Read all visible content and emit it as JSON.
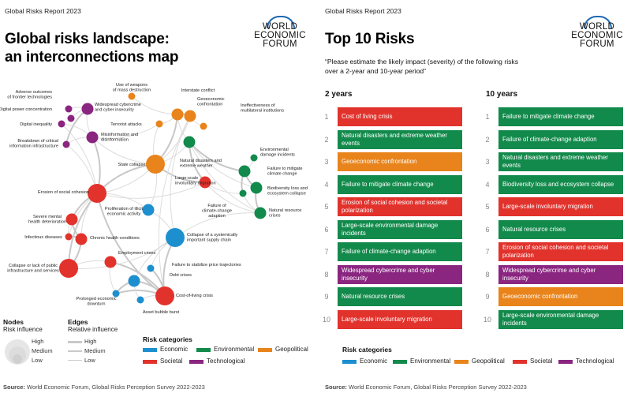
{
  "report_label": "Global Risks Report 2023",
  "logo": {
    "line1": "WORLD",
    "line2": "ECONOMIC",
    "line3": "FORUM"
  },
  "colors": {
    "economic": "#1d8fcf",
    "environmental": "#128a4b",
    "geopolitical": "#e8841b",
    "societal": "#e2322c",
    "technological": "#8a2580"
  },
  "left": {
    "title_line1": "Global risks landscape:",
    "title_line2": "an interconnections map",
    "nodes": [
      {
        "id": "adverse",
        "label": "Adverse outcomes of frontier technologies",
        "cat": "technological",
        "size": "low"
      },
      {
        "id": "digital_power",
        "label": "Digital power concentration",
        "cat": "technological",
        "size": "low"
      },
      {
        "id": "digital_ineq",
        "label": "Digital inequality",
        "cat": "technological",
        "size": "low"
      },
      {
        "id": "breakdown",
        "label": "Breakdown of critical information infrastructure",
        "cat": "technological",
        "size": "low"
      },
      {
        "id": "cyber",
        "label": "Widespread cybercrime and cyber insecurity",
        "cat": "technological",
        "size": "medium"
      },
      {
        "id": "misinfo",
        "label": "Misinformation and disinformation",
        "cat": "technological",
        "size": "medium"
      },
      {
        "id": "wmd",
        "label": "Use of weapons of mass destruction",
        "cat": "geopolitical",
        "size": "low"
      },
      {
        "id": "terror",
        "label": "Terrorist attacks",
        "cat": "geopolitical",
        "size": "low"
      },
      {
        "id": "interstate",
        "label": "Interstate conflict",
        "cat": "geopolitical",
        "size": "medium"
      },
      {
        "id": "geoeco",
        "label": "Geoeconomic confrontation",
        "cat": "geopolitical",
        "size": "medium"
      },
      {
        "id": "ineff",
        "label": "Ineffectiveness of multilateral institutions",
        "cat": "geopolitical",
        "size": "low"
      },
      {
        "id": "state",
        "label": "State collapse",
        "cat": "geopolitical",
        "size": "high"
      },
      {
        "id": "natdis",
        "label": "Natural disasters and extreme weather",
        "cat": "environmental",
        "size": "medium"
      },
      {
        "id": "envdam",
        "label": "Environmental damage incidents",
        "cat": "environmental",
        "size": "low"
      },
      {
        "id": "failmit",
        "label": "Failure to mitigate climate change",
        "cat": "environmental",
        "size": "medium"
      },
      {
        "id": "biodiv",
        "label": "Biodiversity loss and ecosystem collapse",
        "cat": "environmental",
        "size": "medium"
      },
      {
        "id": "natres",
        "label": "Natural resource crises",
        "cat": "environmental",
        "size": "medium"
      },
      {
        "id": "failadapt",
        "label": "Failure of climate-change adaption",
        "cat": "environmental",
        "size": "low"
      },
      {
        "id": "erosion",
        "label": "Erosion of social cohesion",
        "cat": "societal",
        "size": "high"
      },
      {
        "id": "migration",
        "label": "Large-scale involuntary migration",
        "cat": "societal",
        "size": "medium"
      },
      {
        "id": "mental",
        "label": "Severe mental health deterioration",
        "cat": "societal",
        "size": "medium"
      },
      {
        "id": "infect",
        "label": "Infectious diseases",
        "cat": "societal",
        "size": "low"
      },
      {
        "id": "chronic",
        "label": "Chronic health conditions",
        "cat": "societal",
        "size": "medium"
      },
      {
        "id": "collapse_infra",
        "label": "Collapse or lack of public infrastructure and services",
        "cat": "societal",
        "size": "high"
      },
      {
        "id": "employment",
        "label": "Employment crises",
        "cat": "societal",
        "size": "medium"
      },
      {
        "id": "col",
        "label": "Cost-of-living crisis",
        "cat": "societal",
        "size": "high"
      },
      {
        "id": "illicit",
        "label": "Proliferation of illicit economic activity",
        "cat": "economic",
        "size": "medium"
      },
      {
        "id": "supply",
        "label": "Collapse of a systemically important supply chain",
        "cat": "economic",
        "size": "high"
      },
      {
        "id": "price",
        "label": "Failure to stabilize price trajectories",
        "cat": "economic",
        "size": "low"
      },
      {
        "id": "debt",
        "label": "Debt crises",
        "cat": "economic",
        "size": "medium"
      },
      {
        "id": "downturn",
        "label": "Prolonged economic downturn",
        "cat": "economic",
        "size": "low"
      },
      {
        "id": "bubble",
        "label": "Asset bubble burst",
        "cat": "economic",
        "size": "low"
      }
    ],
    "legend": {
      "nodes_title": "Nodes",
      "nodes_sub": "Risk influence",
      "edges_title": "Edges",
      "edges_sub": "Relative influence",
      "levels": [
        "High",
        "Medium",
        "Low"
      ],
      "categories_title": "Risk categories",
      "categories": [
        {
          "key": "economic",
          "label": "Economic"
        },
        {
          "key": "environmental",
          "label": "Environmental"
        },
        {
          "key": "geopolitical",
          "label": "Geopolitical"
        },
        {
          "key": "societal",
          "label": "Societal"
        },
        {
          "key": "technological",
          "label": "Technological"
        }
      ]
    },
    "source_prefix": "Source:",
    "source_text": "World Economic Forum, Global Risks Perception Survey 2022-2023"
  },
  "right": {
    "title": "Top 10 Risks",
    "subtitle": "“Please estimate the likely impact (severity) of the following risks over a 2-year and 10-year period”",
    "col_2yr": "2 years",
    "col_10yr": "10 years",
    "two_year": [
      {
        "rank": "1",
        "label": "Cost of living crisis",
        "cat": "societal"
      },
      {
        "rank": "2",
        "label": "Natural disasters and extreme weather events",
        "cat": "environmental"
      },
      {
        "rank": "3",
        "label": "Geoeconomic confrontation",
        "cat": "geopolitical"
      },
      {
        "rank": "4",
        "label": "Failure to mitigate climate change",
        "cat": "environmental"
      },
      {
        "rank": "5",
        "label": "Erosion of social cohesion and societal polarization",
        "cat": "societal"
      },
      {
        "rank": "6",
        "label": "Large-scale environmental damage incidents",
        "cat": "environmental"
      },
      {
        "rank": "7",
        "label": "Failure of climate-change adaption",
        "cat": "environmental"
      },
      {
        "rank": "8",
        "label": "Widespread cybercrime and cyber insecurity",
        "cat": "technological"
      },
      {
        "rank": "9",
        "label": "Natural resource crises",
        "cat": "environmental"
      },
      {
        "rank": "10",
        "label": "Large-scale involuntary migration",
        "cat": "societal"
      }
    ],
    "ten_year": [
      {
        "rank": "1",
        "label": "Failure to mitigate climate change",
        "cat": "environmental"
      },
      {
        "rank": "2",
        "label": "Failure of climate-change adaption",
        "cat": "environmental"
      },
      {
        "rank": "3",
        "label": "Natural disasters and extreme weather events",
        "cat": "environmental"
      },
      {
        "rank": "4",
        "label": "Biodiversity loss and ecosystem collapse",
        "cat": "environmental"
      },
      {
        "rank": "5",
        "label": "Large-scale involuntary migration",
        "cat": "societal"
      },
      {
        "rank": "6",
        "label": "Natural resource crises",
        "cat": "environmental"
      },
      {
        "rank": "7",
        "label": "Erosion of social cohesion and societal polarization",
        "cat": "societal"
      },
      {
        "rank": "8",
        "label": "Widespread cybercrime and cyber insecurity",
        "cat": "technological"
      },
      {
        "rank": "9",
        "label": "Geoeconomic confrontation",
        "cat": "geopolitical"
      },
      {
        "rank": "10",
        "label": "Large-scale environmental damage incidents",
        "cat": "environmental"
      }
    ],
    "categories_title": "Risk categories",
    "categories": [
      {
        "key": "economic",
        "label": "Economic"
      },
      {
        "key": "environmental",
        "label": "Environmental"
      },
      {
        "key": "geopolitical",
        "label": "Geopolitical"
      },
      {
        "key": "societal",
        "label": "Societal"
      },
      {
        "key": "technological",
        "label": "Technological"
      }
    ],
    "source_prefix": "Source:",
    "source_text": "World Economic Forum, Global Risks Perception Survey 2022-2023"
  }
}
